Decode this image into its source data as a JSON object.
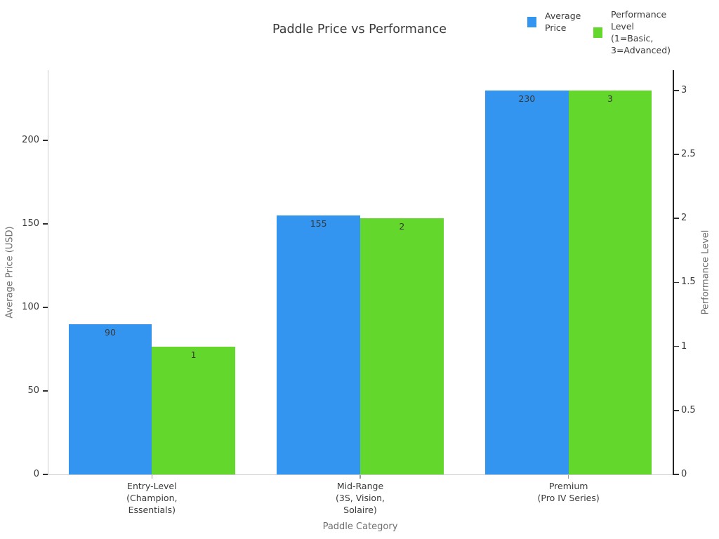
{
  "title": "Paddle Price vs Performance",
  "legend": {
    "items": [
      {
        "name": "average-price",
        "label": "Average\nPrice",
        "color": "#3495f0"
      },
      {
        "name": "performance-level",
        "label": "Performance\nLevel\n(1=Basic,\n3=Advanced)",
        "color": "#63d72b"
      }
    ]
  },
  "chart_data": {
    "type": "bar",
    "title": "Paddle Price vs Performance",
    "categories": [
      "Entry-Level\n(Champion,\nEssentials)",
      "Mid-Range\n(3S, Vision,\nSolaire)",
      "Premium\n(Pro IV Series)"
    ],
    "series": [
      {
        "name": "Average Price",
        "axis": "left",
        "color": "#3495f0",
        "values": [
          90,
          155,
          230
        ]
      },
      {
        "name": "Performance Level (1=Basic, 3=Advanced)",
        "axis": "right",
        "color": "#63d72b",
        "values": [
          1,
          2,
          3
        ]
      }
    ],
    "xlabel": "Paddle Category",
    "ylabel_left": "Average Price (USD)",
    "ylabel_right": "Performance Level",
    "y_left_ticks": [
      0,
      50,
      100,
      150,
      200
    ],
    "y_right_ticks": [
      0,
      0.5,
      1,
      1.5,
      2,
      2.5,
      3
    ],
    "y_left_max": 242,
    "y_right_max": 3.158,
    "grid": false,
    "legend_position": "top-right",
    "bar_value_labels_shown": true
  },
  "colors": {
    "background": "#ffffff",
    "bar_blue": "#3495f0",
    "bar_green": "#63d72b",
    "text_dark": "#3a3a3a",
    "text_axis_title": "#6e6e6e",
    "spine_light": "#cccccc",
    "spine_dark": "#242424"
  }
}
